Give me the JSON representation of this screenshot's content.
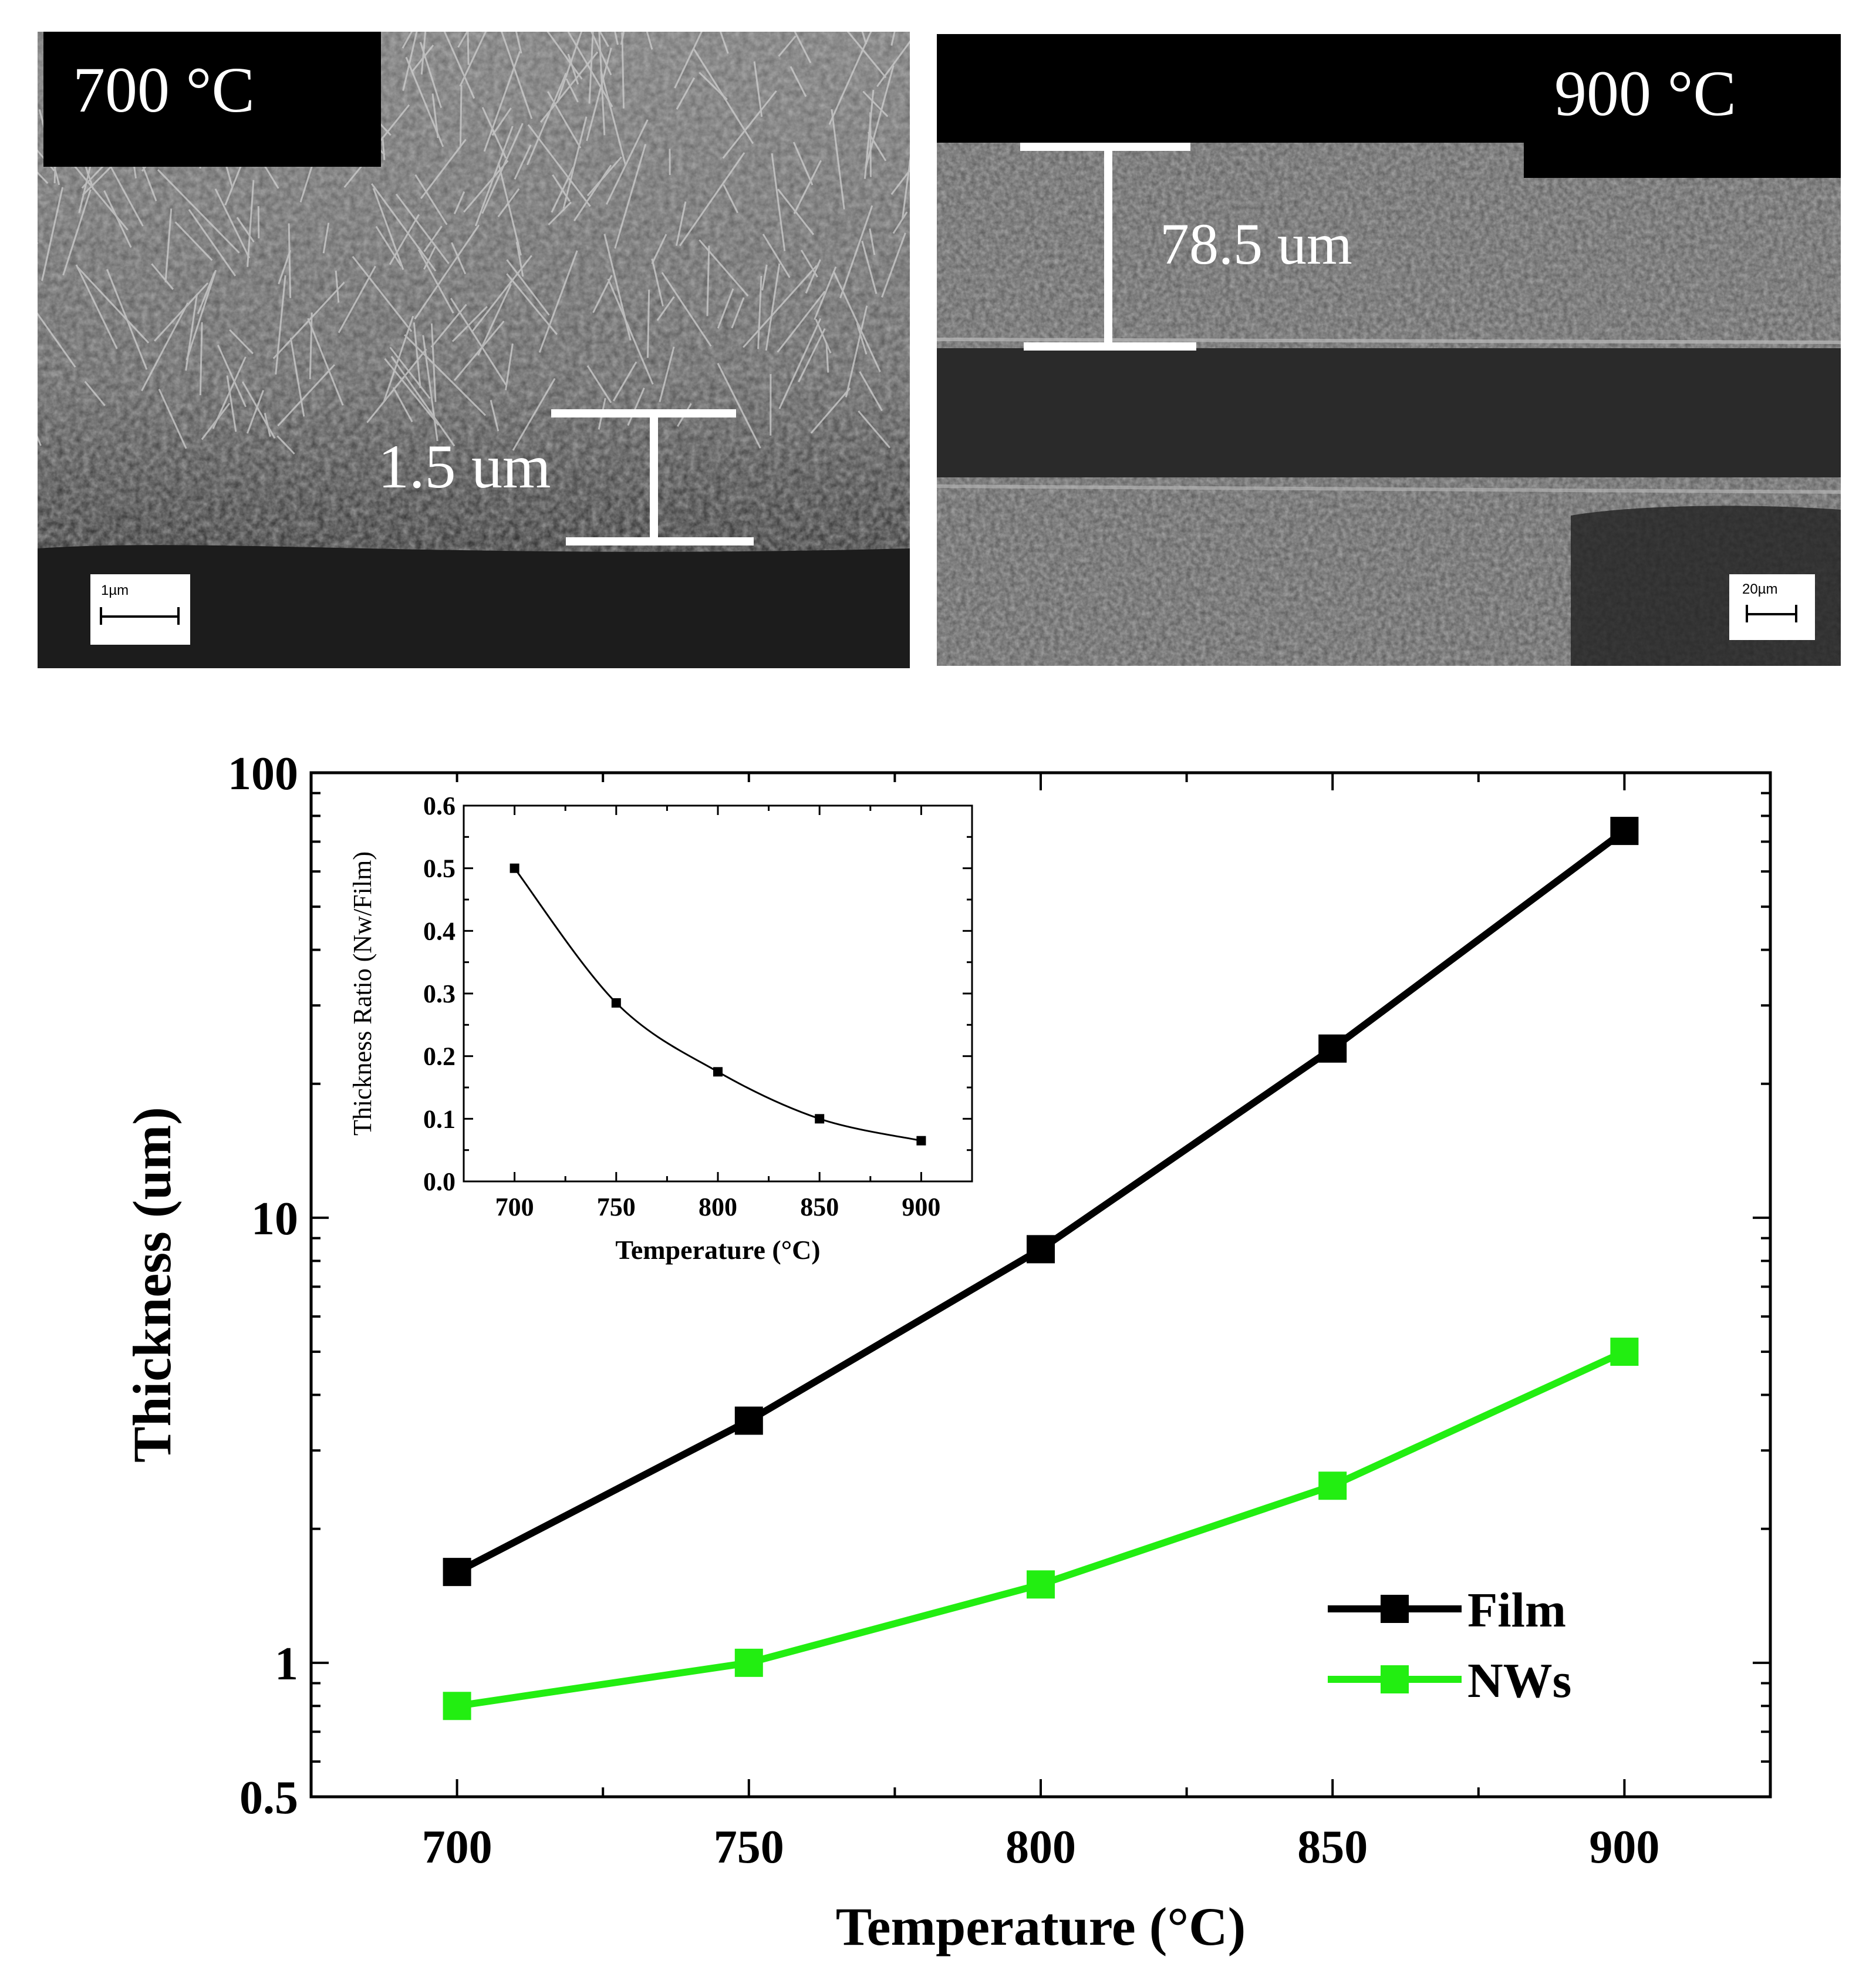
{
  "micrographs": [
    {
      "temperature_label": "700 °C",
      "thickness_label": "1.5 um",
      "scale_bar_label": "1µm"
    },
    {
      "temperature_label": "900 °C",
      "thickness_label": "78.5 um",
      "scale_bar_label": "20µm"
    }
  ],
  "chart_data": [
    {
      "type": "line",
      "title": "",
      "xlabel": "Temperature (°C)",
      "ylabel": "Thickness (um)",
      "x": [
        700,
        750,
        800,
        850,
        900
      ],
      "xlim": [
        675,
        925
      ],
      "ylim": [
        0.5,
        100
      ],
      "yscale": "log",
      "xticks": [
        "700",
        "750",
        "800",
        "850",
        "900"
      ],
      "yticks": [
        "0.5",
        "1",
        "10",
        "100"
      ],
      "legend_position": "bottom-right",
      "series": [
        {
          "name": "Film",
          "color": "#000000",
          "marker": "square",
          "values": [
            1.6,
            3.5,
            8.5,
            24,
            74
          ]
        },
        {
          "name": "NWs",
          "color": "#22ee11",
          "marker": "square",
          "values": [
            0.8,
            1.0,
            1.5,
            2.5,
            5.0
          ]
        }
      ]
    },
    {
      "type": "line",
      "title": "",
      "xlabel": "Temperature (°C)",
      "ylabel": "Thickness Ratio (Nw/Film)",
      "x": [
        700,
        750,
        800,
        850,
        900
      ],
      "xlim": [
        675,
        925
      ],
      "ylim": [
        0.0,
        0.6
      ],
      "xticks": [
        "700",
        "750",
        "800",
        "850",
        "900"
      ],
      "yticks": [
        "0.0",
        "0.1",
        "0.2",
        "0.3",
        "0.4",
        "0.5",
        "0.6"
      ],
      "series": [
        {
          "color": "#000000",
          "marker": "square",
          "values": [
            0.5,
            0.285,
            0.175,
            0.1,
            0.065
          ]
        }
      ]
    }
  ]
}
